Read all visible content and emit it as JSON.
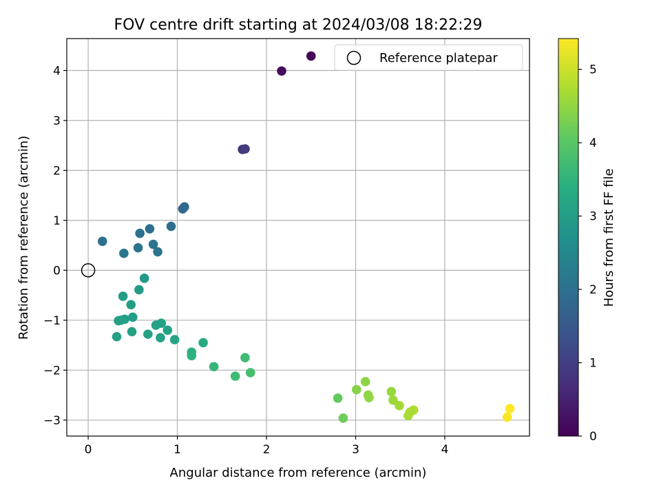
{
  "chart_data": {
    "type": "scatter",
    "title": "FOV centre drift starting at 2024/03/08 18:22:29",
    "xlabel": "Angular distance from reference (arcmin)",
    "ylabel": "Rotation from reference (arcmin)",
    "xlim": [
      -0.24,
      4.95
    ],
    "ylim": [
      -3.32,
      4.64
    ],
    "xticks": [
      0,
      1,
      2,
      3,
      4
    ],
    "yticks": [
      -3,
      -2,
      -1,
      0,
      1,
      2,
      3,
      4
    ],
    "x_tick_labels": [
      "0",
      "1",
      "2",
      "3",
      "4"
    ],
    "y_tick_labels": [
      "−3",
      "−2",
      "−1",
      "0",
      "1",
      "2",
      "3",
      "4"
    ],
    "grid": true,
    "colormap": "viridis",
    "colorbar": {
      "label": "Hours from first FF file",
      "lim": [
        0,
        5.42
      ],
      "ticks": [
        0,
        1,
        2,
        3,
        4,
        5
      ],
      "tick_labels": [
        "0",
        "1",
        "2",
        "3",
        "4",
        "5"
      ]
    },
    "legend": {
      "label": "Reference platepar",
      "position": "upper right"
    },
    "reference_point": {
      "x": 0,
      "y": 0
    },
    "points": [
      {
        "x": 2.5,
        "y": 4.29,
        "hours": 0.05
      },
      {
        "x": 2.17,
        "y": 3.99,
        "hours": 0.15
      },
      {
        "x": 1.73,
        "y": 2.42,
        "hours": 0.9
      },
      {
        "x": 1.76,
        "y": 2.43,
        "hours": 0.95
      },
      {
        "x": 1.06,
        "y": 1.23,
        "hours": 1.8
      },
      {
        "x": 1.08,
        "y": 1.27,
        "hours": 1.82
      },
      {
        "x": 0.93,
        "y": 0.88,
        "hours": 1.9
      },
      {
        "x": 0.69,
        "y": 0.83,
        "hours": 1.95
      },
      {
        "x": 0.58,
        "y": 0.74,
        "hours": 1.98
      },
      {
        "x": 0.16,
        "y": 0.58,
        "hours": 2.0
      },
      {
        "x": 0.73,
        "y": 0.52,
        "hours": 2.05
      },
      {
        "x": 0.56,
        "y": 0.45,
        "hours": 2.08
      },
      {
        "x": 0.78,
        "y": 0.37,
        "hours": 2.1
      },
      {
        "x": 0.4,
        "y": 0.34,
        "hours": 2.12
      },
      {
        "x": 0.63,
        "y": -0.16,
        "hours": 2.9
      },
      {
        "x": 0.57,
        "y": -0.39,
        "hours": 2.95
      },
      {
        "x": 0.39,
        "y": -0.52,
        "hours": 2.97
      },
      {
        "x": 0.48,
        "y": -0.69,
        "hours": 3.0
      },
      {
        "x": 0.5,
        "y": -0.94,
        "hours": 3.02
      },
      {
        "x": 0.41,
        "y": -0.98,
        "hours": 3.04
      },
      {
        "x": 0.34,
        "y": -1.01,
        "hours": 3.05
      },
      {
        "x": 0.37,
        "y": -1.0,
        "hours": 3.06
      },
      {
        "x": 0.82,
        "y": -1.06,
        "hours": 3.1
      },
      {
        "x": 0.76,
        "y": -1.1,
        "hours": 3.1
      },
      {
        "x": 0.89,
        "y": -1.2,
        "hours": 3.12
      },
      {
        "x": 0.49,
        "y": -1.23,
        "hours": 3.08
      },
      {
        "x": 0.67,
        "y": -1.28,
        "hours": 3.1
      },
      {
        "x": 0.32,
        "y": -1.33,
        "hours": 3.07
      },
      {
        "x": 0.81,
        "y": -1.35,
        "hours": 3.12
      },
      {
        "x": 0.97,
        "y": -1.39,
        "hours": 3.15
      },
      {
        "x": 1.29,
        "y": -1.45,
        "hours": 3.3
      },
      {
        "x": 1.16,
        "y": -1.64,
        "hours": 3.45
      },
      {
        "x": 1.16,
        "y": -1.71,
        "hours": 3.48
      },
      {
        "x": 1.76,
        "y": -1.75,
        "hours": 3.7
      },
      {
        "x": 1.41,
        "y": -1.93,
        "hours": 3.55
      },
      {
        "x": 1.82,
        "y": -2.05,
        "hours": 3.78
      },
      {
        "x": 1.65,
        "y": -2.12,
        "hours": 3.68
      },
      {
        "x": 3.11,
        "y": -2.23,
        "hours": 4.45
      },
      {
        "x": 3.01,
        "y": -2.39,
        "hours": 4.4
      },
      {
        "x": 3.4,
        "y": -2.43,
        "hours": 4.55
      },
      {
        "x": 3.14,
        "y": -2.5,
        "hours": 4.48
      },
      {
        "x": 3.15,
        "y": -2.55,
        "hours": 4.5
      },
      {
        "x": 2.8,
        "y": -2.56,
        "hours": 4.1
      },
      {
        "x": 3.42,
        "y": -2.6,
        "hours": 4.6
      },
      {
        "x": 3.49,
        "y": -2.71,
        "hours": 4.65
      },
      {
        "x": 3.65,
        "y": -2.8,
        "hours": 4.75
      },
      {
        "x": 3.61,
        "y": -2.84,
        "hours": 4.72
      },
      {
        "x": 3.59,
        "y": -2.91,
        "hours": 4.7
      },
      {
        "x": 2.86,
        "y": -2.96,
        "hours": 4.2
      },
      {
        "x": 4.73,
        "y": -2.77,
        "hours": 5.42
      },
      {
        "x": 4.7,
        "y": -2.94,
        "hours": 5.38
      }
    ]
  }
}
